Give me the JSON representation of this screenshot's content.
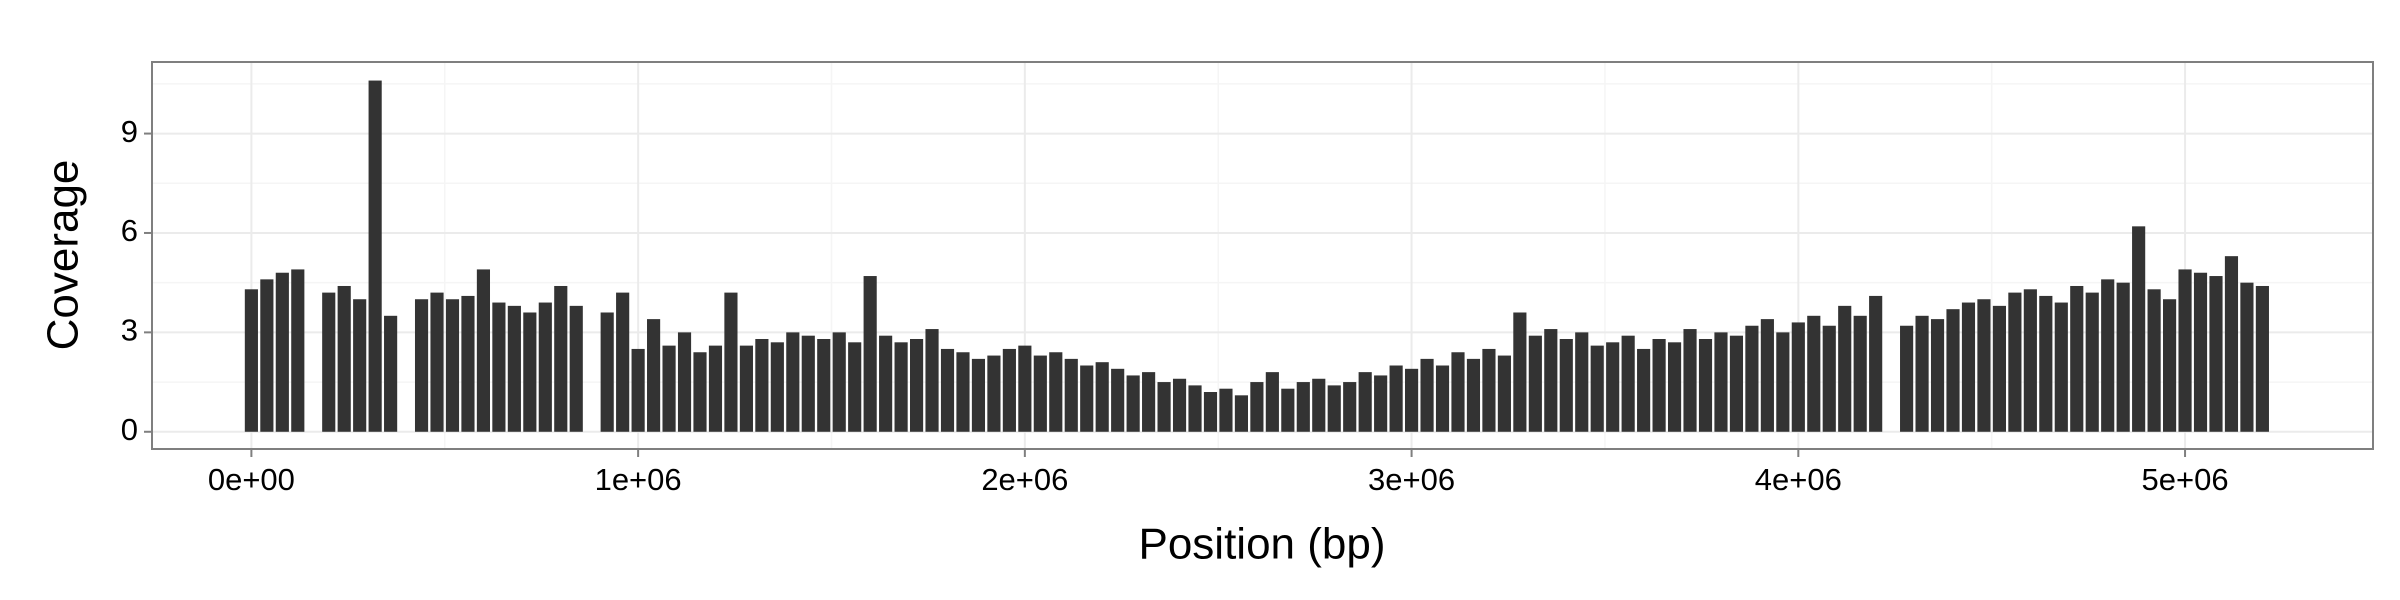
{
  "chart_data": {
    "type": "bar",
    "xlabel": "Position (bp)",
    "ylabel": "Coverage",
    "color": "#333333",
    "x": [
      0,
      40000,
      80000,
      120000,
      160000,
      200000,
      240000,
      280000,
      320000,
      360000,
      400000,
      440000,
      480000,
      520000,
      560000,
      600000,
      640000,
      680000,
      720000,
      760000,
      800000,
      840000,
      880000,
      920000,
      960000,
      1000000,
      1040000,
      1080000,
      1120000,
      1160000,
      1200000,
      1240000,
      1280000,
      1320000,
      1360000,
      1400000,
      1440000,
      1480000,
      1520000,
      1560000,
      1600000,
      1640000,
      1680000,
      1720000,
      1760000,
      1800000,
      1840000,
      1880000,
      1920000,
      1960000,
      2000000,
      2040000,
      2080000,
      2120000,
      2160000,
      2200000,
      2240000,
      2280000,
      2320000,
      2360000,
      2400000,
      2440000,
      2480000,
      2520000,
      2560000,
      2600000,
      2640000,
      2680000,
      2720000,
      2760000,
      2800000,
      2840000,
      2880000,
      2920000,
      2960000,
      3000000,
      3040000,
      3080000,
      3120000,
      3160000,
      3200000,
      3240000,
      3280000,
      3320000,
      3360000,
      3400000,
      3440000,
      3480000,
      3520000,
      3560000,
      3600000,
      3640000,
      3680000,
      3720000,
      3760000,
      3800000,
      3840000,
      3880000,
      3920000,
      3960000,
      4000000,
      4040000,
      4080000,
      4120000,
      4160000,
      4200000,
      4240000,
      4280000,
      4320000,
      4360000,
      4400000,
      4440000,
      4480000,
      4520000,
      4560000,
      4600000,
      4640000,
      4680000,
      4720000,
      4760000,
      4800000,
      4840000,
      4880000,
      4920000,
      4960000,
      5000000,
      5040000,
      5080000,
      5120000,
      5160000,
      5200000
    ],
    "values": [
      4.3,
      4.6,
      4.8,
      4.9,
      0,
      4.2,
      4.4,
      4.0,
      10.6,
      3.5,
      0,
      4.0,
      4.2,
      4.0,
      4.1,
      4.9,
      3.9,
      3.8,
      3.6,
      3.9,
      4.4,
      3.8,
      0,
      3.6,
      4.2,
      2.5,
      3.4,
      2.6,
      3.0,
      2.4,
      2.6,
      4.2,
      2.6,
      2.8,
      2.7,
      3.0,
      2.9,
      2.8,
      3.0,
      2.7,
      4.7,
      2.9,
      2.7,
      2.8,
      3.1,
      2.5,
      2.4,
      2.2,
      2.3,
      2.5,
      2.6,
      2.3,
      2.4,
      2.2,
      2.0,
      2.1,
      1.9,
      1.7,
      1.8,
      1.5,
      1.6,
      1.4,
      1.2,
      1.3,
      1.1,
      1.5,
      1.8,
      1.3,
      1.5,
      1.6,
      1.4,
      1.5,
      1.8,
      1.7,
      2.0,
      1.9,
      2.2,
      2.0,
      2.4,
      2.2,
      2.5,
      2.3,
      3.6,
      2.9,
      3.1,
      2.8,
      3.0,
      2.6,
      2.7,
      2.9,
      2.5,
      2.8,
      2.7,
      3.1,
      2.8,
      3.0,
      2.9,
      3.2,
      3.4,
      3.0,
      3.3,
      3.5,
      3.2,
      3.8,
      3.5,
      4.1,
      0,
      3.2,
      3.5,
      3.4,
      3.7,
      3.9,
      4.0,
      3.8,
      4.2,
      4.3,
      4.1,
      3.9,
      4.4,
      4.2,
      4.6,
      4.5,
      6.2,
      4.3,
      4.0,
      4.9,
      4.8,
      4.7,
      5.3,
      4.5,
      4.4
    ],
    "xlim": [
      -257000,
      5486000
    ],
    "ylim": [
      -0.52,
      11.16
    ],
    "xticks": [
      {
        "value": 0,
        "label": "0e+00"
      },
      {
        "value": 1000000,
        "label": "1e+06"
      },
      {
        "value": 2000000,
        "label": "2e+06"
      },
      {
        "value": 3000000,
        "label": "3e+06"
      },
      {
        "value": 4000000,
        "label": "4e+06"
      },
      {
        "value": 5000000,
        "label": "5e+06"
      }
    ],
    "yticks": [
      0,
      3,
      6,
      9
    ],
    "xminor": [
      500000,
      1500000,
      2500000,
      3500000,
      4500000
    ],
    "yminor": [
      1.5,
      4.5,
      7.5,
      10.5
    ],
    "grid": true
  }
}
